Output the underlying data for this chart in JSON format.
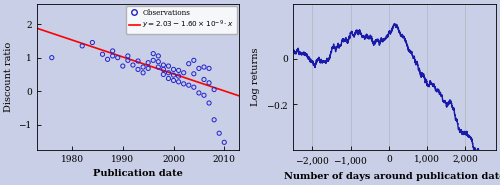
{
  "fig_width": 5.0,
  "fig_height": 1.85,
  "dpi": 100,
  "bg_color": "#c8cfe6",
  "panel1": {
    "xlabel": "Publication date",
    "ylabel": "Discount ratio",
    "xlim": [
      1973,
      2013
    ],
    "ylim": [
      -1.75,
      2.6
    ],
    "xticks": [
      1980,
      1990,
      2000,
      2010
    ],
    "yticks": [
      -1,
      0,
      1,
      2
    ],
    "scatter_color": "#2222cc",
    "trend_color": "red",
    "trend_intercept": 2.03,
    "trend_slope": -1.6e-09,
    "legend_obs": "Observations",
    "legend_eq": "$y = 2.03 - 1.60 \\times 10^{-9} \\cdot x$",
    "scatter_x": [
      1976,
      1982,
      1984,
      1986,
      1987,
      1988,
      1988,
      1989,
      1990,
      1991,
      1991,
      1992,
      1993,
      1993,
      1994,
      1994,
      1995,
      1995,
      1996,
      1996,
      1997,
      1997,
      1997,
      1998,
      1998,
      1998,
      1999,
      1999,
      1999,
      2000,
      2000,
      2000,
      2001,
      2001,
      2001,
      2002,
      2002,
      2003,
      2003,
      2004,
      2004,
      2004,
      2005,
      2005,
      2006,
      2006,
      2006,
      2007,
      2007,
      2007,
      2008,
      2008,
      2009,
      2010
    ],
    "scatter_y": [
      1.0,
      1.35,
      1.45,
      1.1,
      0.95,
      1.05,
      1.2,
      1.0,
      0.75,
      0.92,
      1.05,
      0.78,
      0.65,
      0.9,
      0.55,
      0.72,
      0.68,
      0.85,
      0.92,
      1.12,
      0.72,
      0.88,
      1.05,
      0.5,
      0.65,
      0.78,
      0.38,
      0.55,
      0.75,
      0.32,
      0.48,
      0.65,
      0.28,
      0.45,
      0.62,
      0.22,
      0.55,
      0.18,
      0.82,
      0.12,
      0.52,
      0.92,
      -0.05,
      0.68,
      -0.12,
      0.35,
      0.72,
      -0.35,
      0.25,
      0.68,
      -0.85,
      0.05,
      -1.25,
      -1.52
    ]
  },
  "panel2": {
    "xlabel": "Number of days around publication date",
    "ylabel": "Log returns",
    "xlim": [
      -2500,
      2800
    ],
    "ylim": [
      -0.4,
      0.24
    ],
    "xticks": [
      -2000,
      -1000,
      0,
      1000,
      2000
    ],
    "ytick_vals": [
      -0.2,
      0.0
    ],
    "ytick_labels": [
      "−0.2",
      "0"
    ],
    "line_color": "#1a1aaa",
    "line_width": 1.0
  }
}
